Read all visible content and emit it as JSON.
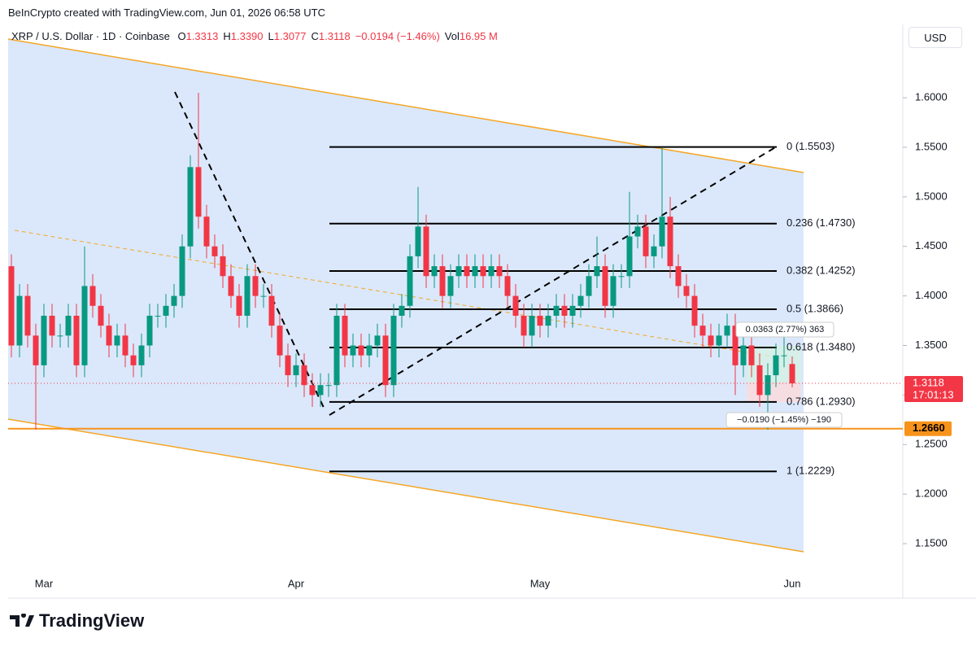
{
  "header": "BeInCrypto created with TradingView.com, Jun 01, 2026 06:58 UTC",
  "logo": "TradingView",
  "currency": "USD",
  "chart_data": {
    "type": "candlestick",
    "title": "XRP / U.S. Dollar · 1D · Coinbase",
    "legend_items": [
      {
        "label": "O",
        "value": "1.3313"
      },
      {
        "label": "H",
        "value": "1.3390"
      },
      {
        "label": "L",
        "value": "1.3077"
      },
      {
        "label": "C",
        "value": "1.3118"
      },
      {
        "label": "",
        "value": "−0.0194 (−1.46%)"
      },
      {
        "label": "Vol",
        "value": "16.95 M"
      }
    ],
    "up_color": "#089981",
    "down_color": "#f23645",
    "categories": [
      null,
      null,
      null,
      null,
      "Mar",
      null,
      null,
      null,
      null,
      null,
      null,
      null,
      null,
      null,
      null,
      null,
      null,
      null,
      null,
      null,
      null,
      null,
      null,
      null,
      null,
      null,
      null,
      null,
      null,
      null,
      null,
      null,
      null,
      null,
      null,
      "Apr",
      null,
      null,
      null,
      null,
      null,
      null,
      null,
      null,
      null,
      null,
      null,
      null,
      null,
      null,
      null,
      null,
      null,
      null,
      null,
      null,
      null,
      null,
      null,
      null,
      null,
      null,
      null,
      null,
      null,
      "May",
      null,
      null,
      null,
      null,
      null,
      null,
      null,
      null,
      null,
      null,
      null,
      null,
      null,
      null,
      null,
      null,
      null,
      null,
      null,
      null,
      null,
      null,
      null,
      null,
      null,
      null,
      null,
      null,
      null,
      null,
      "Jun"
    ],
    "open": [
      1.43,
      1.35,
      1.4,
      1.36,
      1.33,
      1.38,
      1.36,
      1.36,
      1.38,
      1.33,
      1.41,
      1.39,
      1.37,
      1.35,
      1.36,
      1.34,
      1.33,
      1.35,
      1.38,
      1.38,
      1.39,
      1.4,
      1.45,
      1.53,
      1.48,
      1.45,
      1.44,
      1.42,
      1.4,
      1.38,
      1.42,
      1.4,
      1.4,
      1.37,
      1.34,
      1.32,
      1.33,
      1.31,
      1.3,
      1.31,
      1.31,
      1.38,
      1.34,
      1.35,
      1.34,
      1.35,
      1.36,
      1.31,
      1.38,
      1.39,
      1.44,
      1.47,
      1.42,
      1.43,
      1.4,
      1.42,
      1.43,
      1.42,
      1.43,
      1.42,
      1.43,
      1.42,
      1.4,
      1.38,
      1.36,
      1.38,
      1.37,
      1.38,
      1.39,
      1.38,
      1.39,
      1.4,
      1.42,
      1.43,
      1.39,
      1.42,
      1.42,
      1.46,
      1.47,
      1.44,
      1.45,
      1.48,
      1.43,
      1.41,
      1.4,
      1.37,
      1.36,
      1.35,
      1.36,
      1.37,
      1.33,
      1.35,
      1.33,
      1.3,
      1.32,
      1.34,
      1.3313
    ],
    "high": [
      1.442,
      1.412,
      1.412,
      1.372,
      1.392,
      1.392,
      1.372,
      1.392,
      1.392,
      1.45,
      1.422,
      1.402,
      1.382,
      1.372,
      1.372,
      1.352,
      1.362,
      1.392,
      1.392,
      1.402,
      1.412,
      1.462,
      1.542,
      1.605,
      1.492,
      1.462,
      1.452,
      1.432,
      1.412,
      1.432,
      1.432,
      1.412,
      1.412,
      1.382,
      1.352,
      1.342,
      1.342,
      1.322,
      1.322,
      1.322,
      1.392,
      1.392,
      1.362,
      1.362,
      1.362,
      1.372,
      1.372,
      1.392,
      1.402,
      1.452,
      1.51,
      1.482,
      1.442,
      1.442,
      1.432,
      1.442,
      1.442,
      1.442,
      1.442,
      1.442,
      1.442,
      1.432,
      1.412,
      1.392,
      1.392,
      1.392,
      1.392,
      1.402,
      1.402,
      1.402,
      1.412,
      1.432,
      1.46,
      1.442,
      1.432,
      1.432,
      1.505,
      1.482,
      1.482,
      1.462,
      1.55,
      1.5,
      1.442,
      1.422,
      1.412,
      1.382,
      1.372,
      1.372,
      1.382,
      1.382,
      1.362,
      1.362,
      1.342,
      1.332,
      1.352,
      1.363,
      1.339
    ],
    "low": [
      1.338,
      1.338,
      1.348,
      1.265,
      1.318,
      1.348,
      1.348,
      1.348,
      1.318,
      1.318,
      1.378,
      1.358,
      1.338,
      1.338,
      1.328,
      1.318,
      1.318,
      1.338,
      1.368,
      1.368,
      1.378,
      1.388,
      1.438,
      1.468,
      1.438,
      1.428,
      1.408,
      1.388,
      1.368,
      1.368,
      1.388,
      1.388,
      1.358,
      1.328,
      1.308,
      1.308,
      1.298,
      1.288,
      1.288,
      1.298,
      1.298,
      1.328,
      1.328,
      1.328,
      1.328,
      1.338,
      1.298,
      1.298,
      1.368,
      1.378,
      1.428,
      1.408,
      1.408,
      1.388,
      1.388,
      1.408,
      1.408,
      1.408,
      1.408,
      1.408,
      1.408,
      1.388,
      1.368,
      1.348,
      1.348,
      1.358,
      1.358,
      1.368,
      1.368,
      1.368,
      1.378,
      1.388,
      1.408,
      1.378,
      1.378,
      1.408,
      1.408,
      1.448,
      1.428,
      1.428,
      1.438,
      1.418,
      1.398,
      1.388,
      1.358,
      1.348,
      1.338,
      1.338,
      1.348,
      1.3,
      1.318,
      1.318,
      1.288,
      1.265,
      1.308,
      1.328,
      1.3077
    ],
    "close": [
      1.35,
      1.4,
      1.36,
      1.33,
      1.38,
      1.36,
      1.36,
      1.38,
      1.33,
      1.41,
      1.39,
      1.37,
      1.35,
      1.36,
      1.34,
      1.33,
      1.35,
      1.38,
      1.38,
      1.39,
      1.4,
      1.45,
      1.53,
      1.48,
      1.45,
      1.44,
      1.42,
      1.4,
      1.38,
      1.42,
      1.4,
      1.4,
      1.37,
      1.34,
      1.32,
      1.33,
      1.31,
      1.3,
      1.31,
      1.31,
      1.38,
      1.34,
      1.35,
      1.34,
      1.35,
      1.36,
      1.31,
      1.38,
      1.39,
      1.44,
      1.47,
      1.42,
      1.43,
      1.4,
      1.42,
      1.43,
      1.42,
      1.43,
      1.42,
      1.43,
      1.42,
      1.4,
      1.38,
      1.36,
      1.38,
      1.37,
      1.38,
      1.39,
      1.38,
      1.39,
      1.4,
      1.42,
      1.43,
      1.39,
      1.42,
      1.42,
      1.46,
      1.47,
      1.44,
      1.45,
      1.48,
      1.43,
      1.41,
      1.4,
      1.37,
      1.36,
      1.35,
      1.36,
      1.37,
      1.33,
      1.35,
      1.33,
      1.3,
      1.32,
      1.34,
      1.34,
      1.3118
    ],
    "ylim": [
      1.095,
      1.674
    ],
    "yticks": [
      {
        "value": 1.15,
        "label": "1.1500"
      },
      {
        "value": 1.2,
        "label": "1.2000"
      },
      {
        "value": 1.25,
        "label": "1.2500"
      },
      {
        "value": 1.3,
        "label": "1.3000"
      },
      {
        "value": 1.35,
        "label": "1.3500"
      },
      {
        "value": 1.4,
        "label": "1.4000"
      },
      {
        "value": 1.45,
        "label": "1.4500"
      },
      {
        "value": 1.5,
        "label": "1.5000"
      },
      {
        "value": 1.55,
        "label": "1.5500"
      },
      {
        "value": 1.6,
        "label": "1.6000"
      }
    ],
    "fib_levels": [
      {
        "value": 1.5503,
        "label": "0 (1.5503)"
      },
      {
        "value": 1.473,
        "label": "0.236 (1.4730)"
      },
      {
        "value": 1.4252,
        "label": "0.382 (1.4252)"
      },
      {
        "value": 1.3866,
        "label": "0.5 (1.3866)"
      },
      {
        "value": 1.348,
        "label": "0.618 (1.3480)"
      },
      {
        "value": 1.293,
        "label": "0.786 (1.2930)"
      },
      {
        "value": 1.2229,
        "label": "1 (1.2229)"
      }
    ],
    "support": {
      "value": 1.266,
      "label": "1.2660",
      "color": "#f7931a"
    },
    "last_price": {
      "value": 1.3118,
      "countdown": "17:01:13"
    },
    "annotations": [
      "0.0363 (2.77%) 363",
      "−0.0190 (−1.45%) −190"
    ]
  }
}
